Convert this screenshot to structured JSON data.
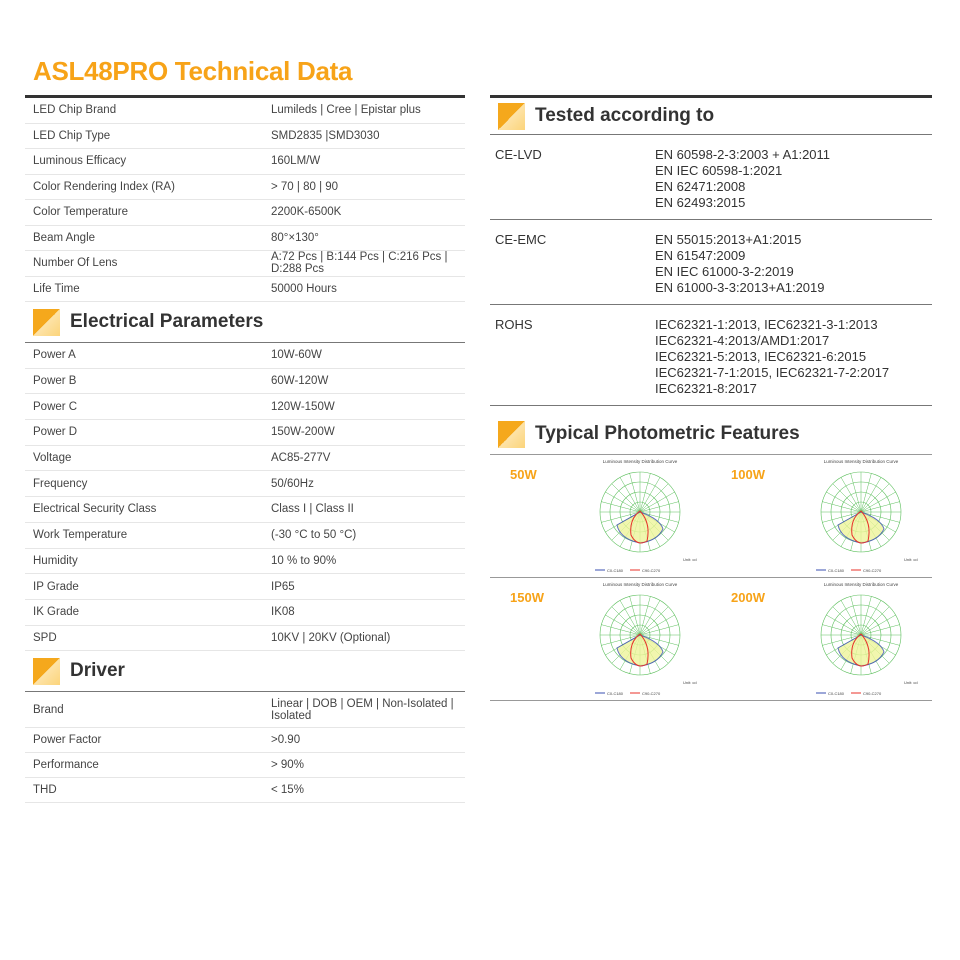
{
  "title": "ASL48PRO Technical Data",
  "specs": [
    {
      "k": "LED Chip Brand",
      "v": "Lumileds | Cree | Epistar plus"
    },
    {
      "k": "LED Chip Type",
      "v": "SMD2835 |SMD3030"
    },
    {
      "k": "Luminous Efficacy",
      "v": "160LM/W"
    },
    {
      "k": "Color Rendering Index (RA)",
      "v": "> 70 | 80 | 90"
    },
    {
      "k": "Color Temperature",
      "v": "2200K-6500K"
    },
    {
      "k": "Beam Angle",
      "v": "80°×130°"
    },
    {
      "k": "Number Of Lens",
      "v": "A:72 Pcs | B:144 Pcs | C:216 Pcs | D:288 Pcs"
    },
    {
      "k": "Life Time",
      "v": "50000 Hours"
    }
  ],
  "electrical": {
    "title": "Electrical Parameters",
    "rows": [
      {
        "k": "Power A",
        "v": "10W-60W"
      },
      {
        "k": "Power B",
        "v": "60W-120W"
      },
      {
        "k": "Power C",
        "v": "120W-150W"
      },
      {
        "k": "Power D",
        "v": "150W-200W"
      },
      {
        "k": "Voltage",
        "v": "AC85-277V"
      },
      {
        "k": "Frequency",
        "v": "50/60Hz"
      },
      {
        "k": "Electrical Security Class",
        "v": "Class I | Class II"
      },
      {
        "k": "Work Temperature",
        "v": "(-30 °C to 50 °C)"
      },
      {
        "k": "Humidity",
        "v": "10 % to 90%"
      },
      {
        "k": "IP Grade",
        "v": "IP65"
      },
      {
        "k": "IK Grade",
        "v": "IK08"
      },
      {
        "k": "SPD",
        "v": "10KV | 20KV (Optional)"
      }
    ]
  },
  "driver": {
    "title": "Driver",
    "rows": [
      {
        "k": "Brand",
        "v": "Linear | DOB | OEM | Non-Isolated | Isolated"
      },
      {
        "k": "Power Factor",
        "v": ">0.90"
      },
      {
        "k": "Performance",
        "v": "> 90%"
      },
      {
        "k": "THD",
        "v": "< 15%"
      }
    ]
  },
  "tested": {
    "title": "Tested according to",
    "rows": [
      {
        "k": "CE-LVD",
        "v": [
          "EN 60598-2-3:2003 + A1:2011",
          "EN IEC 60598-1:2021",
          "EN 62471:2008",
          "EN 62493:2015"
        ]
      },
      {
        "k": "CE-EMC",
        "v": [
          "EN 55015:2013+A1:2015",
          "EN 61547:2009",
          "EN IEC 61000-3-2:2019",
          "EN 61000-3-3:2013+A1:2019"
        ]
      },
      {
        "k": "ROHS",
        "v": [
          "IEC62321-1:2013, IEC62321-3-1:2013",
          "IEC62321-4:2013/AMD1:2017",
          "IEC62321-5:2013, IEC62321-6:2015",
          "IEC62321-7-1:2015, IEC62321-7-2:2017",
          "IEC62321-8:2017"
        ]
      }
    ]
  },
  "photometric": {
    "title": "Typical Photometric Features",
    "chart_title": "Luminous Intensity Distribution Curve",
    "legend": [
      "C0-C180",
      "C90-C270"
    ],
    "unit": "Unit: cd",
    "watts": [
      "50W",
      "100W",
      "150W",
      "200W"
    ],
    "colors": {
      "c0": "#3a4fb0",
      "c90": "#e8302a",
      "grid": "#5cbf5c"
    }
  }
}
